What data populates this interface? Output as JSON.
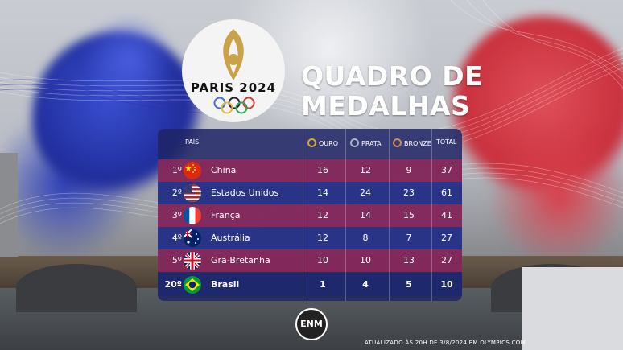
{
  "logo": {
    "text": "PARIS 2024"
  },
  "title_line1": "QUADRO DE",
  "title_line2": "MEDALHAS",
  "columns": {
    "country": "PAÍS",
    "gold": "OURO",
    "silver": "PRATA",
    "bronze": "BRONZE",
    "total": "TOTAL"
  },
  "medal_colors": {
    "gold": "#d4a73a",
    "silver": "#a9b4c8",
    "bronze": "#c88a5a"
  },
  "rows": [
    {
      "rank": "1º",
      "country": "China",
      "flag": "china-flag",
      "gold": "16",
      "silver": "12",
      "bronze": "9",
      "total": "37"
    },
    {
      "rank": "2º",
      "country": "Estados Unidos",
      "flag": "usa-flag",
      "gold": "14",
      "silver": "24",
      "bronze": "23",
      "total": "61"
    },
    {
      "rank": "3º",
      "country": "França",
      "flag": "france-flag",
      "gold": "12",
      "silver": "14",
      "bronze": "15",
      "total": "41"
    },
    {
      "rank": "4º",
      "country": "Austrália",
      "flag": "australia-flag",
      "gold": "12",
      "silver": "8",
      "bronze": "7",
      "total": "27"
    },
    {
      "rank": "5º",
      "country": "Grã-Bretanha",
      "flag": "uk-flag",
      "gold": "10",
      "silver": "10",
      "bronze": "13",
      "total": "27"
    },
    {
      "rank": "20º",
      "country": "Brasil",
      "flag": "brazil-flag",
      "gold": "1",
      "silver": "4",
      "bronze": "5",
      "total": "10"
    }
  ],
  "badge": "ENM",
  "footer": "ATUALIZADO ÀS 20H DE 3/8/2024 EM OLYMPICS.COM"
}
